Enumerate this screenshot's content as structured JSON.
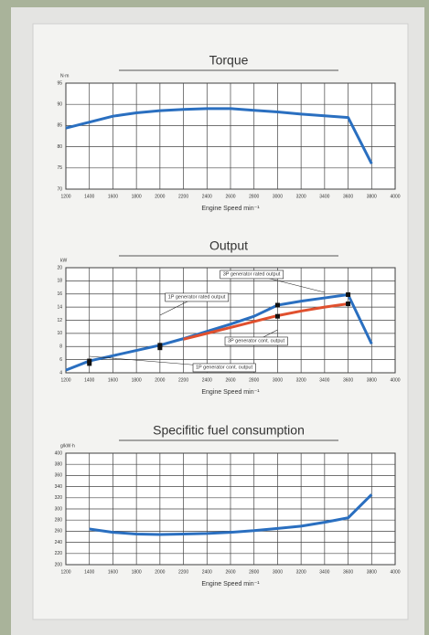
{
  "chart_data": [
    {
      "type": "line",
      "title": "Torque",
      "y_label": "N·m",
      "x_label": "Engine Speed min⁻¹",
      "xlim": [
        1200,
        4000
      ],
      "xticks": [
        1200,
        1400,
        1600,
        1800,
        2000,
        2200,
        2400,
        2600,
        2800,
        3000,
        3200,
        3400,
        3600,
        3800,
        4000
      ],
      "ylim": [
        70,
        95
      ],
      "yticks": [
        70,
        75,
        80,
        85,
        90,
        95
      ],
      "grid": true,
      "series": [
        {
          "color": "#2a6fc0",
          "x": [
            1200,
            1400,
            1600,
            1800,
            2000,
            2200,
            2400,
            2600,
            2800,
            3000,
            3200,
            3400,
            3600,
            3800
          ],
          "values": [
            84.4,
            85.8,
            87.2,
            88.0,
            88.5,
            88.8,
            89.0,
            89.0,
            88.6,
            88.2,
            87.7,
            87.3,
            86.9,
            76.0
          ]
        }
      ]
    },
    {
      "type": "line",
      "title": "Output",
      "y_label": "kW",
      "x_label": "Engine Speed min⁻¹",
      "xlim": [
        1200,
        4000
      ],
      "xticks": [
        1200,
        1400,
        1600,
        1800,
        2000,
        2200,
        2400,
        2600,
        2800,
        3000,
        3200,
        3400,
        3600,
        3800,
        4000
      ],
      "ylim": [
        4,
        20
      ],
      "yticks": [
        4,
        6,
        8,
        10,
        12,
        14,
        16,
        18,
        20
      ],
      "grid": true,
      "series": [
        {
          "color": "#2a6fc0",
          "x": [
            1200,
            1400,
            1600,
            1800,
            2000,
            2200,
            2400,
            2600,
            2800,
            3000,
            3200,
            3400,
            3600,
            3800
          ],
          "values": [
            4.4,
            5.8,
            6.6,
            7.4,
            8.2,
            9.2,
            10.3,
            11.4,
            12.6,
            14.3,
            14.9,
            15.4,
            15.9,
            8.4
          ]
        },
        {
          "color": "#e0502e",
          "x": [
            2200,
            2400,
            2600,
            2800,
            3000,
            3200,
            3400,
            3600
          ],
          "values": [
            9.1,
            10.0,
            10.9,
            11.8,
            12.7,
            13.4,
            14.0,
            14.5
          ]
        },
        {
          "color": "#111111",
          "markers": true,
          "x": [
            1400,
            1400,
            2000,
            2000,
            3000,
            3000,
            3600,
            3600
          ],
          "values": [
            5.8,
            5.4,
            8.2,
            7.8,
            14.3,
            12.6,
            15.9,
            14.5
          ]
        }
      ],
      "annotations": [
        "3P generator rated output",
        "1P generator rated output",
        "3P generator cont. output",
        "1P generator cont. output"
      ]
    },
    {
      "type": "line",
      "title": "Specifitic fuel consumption",
      "y_label": "g/kW·h",
      "x_label": "Engine Speed min⁻¹",
      "xlim": [
        1200,
        4000
      ],
      "xticks": [
        1200,
        1400,
        1600,
        1800,
        2000,
        2200,
        2400,
        2600,
        2800,
        3000,
        3200,
        3400,
        3600,
        3800,
        4000
      ],
      "ylim": [
        200,
        400
      ],
      "yticks": [
        200,
        220,
        240,
        260,
        280,
        300,
        320,
        340,
        360,
        380,
        400
      ],
      "grid": true,
      "series": [
        {
          "color": "#2a6fc0",
          "x": [
            1400,
            1600,
            1800,
            2000,
            2200,
            2400,
            2600,
            2800,
            3000,
            3200,
            3400,
            3600,
            3800
          ],
          "values": [
            264,
            258,
            255,
            254,
            255,
            256,
            258,
            261,
            265,
            269,
            276,
            284,
            326
          ]
        }
      ]
    }
  ]
}
